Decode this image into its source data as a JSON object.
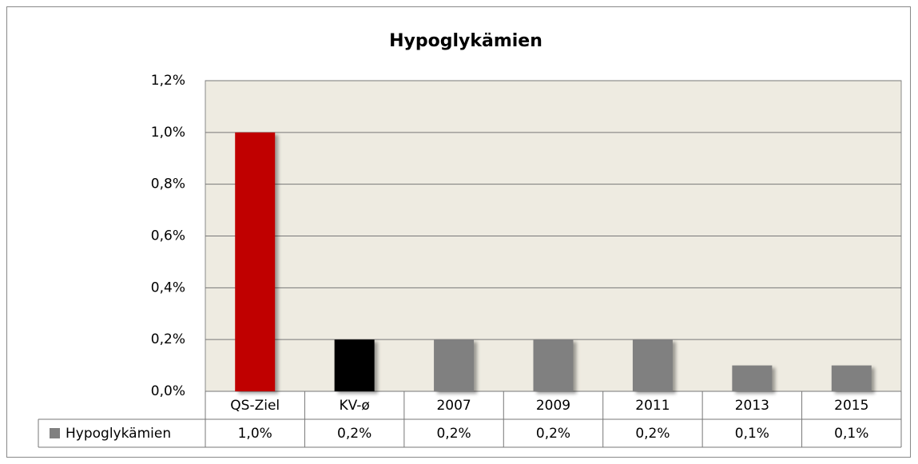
{
  "chart_data": {
    "type": "bar",
    "title": "Hypoglykämien",
    "categories": [
      "QS-Ziel",
      "KV-ø",
      "2007",
      "2009",
      "2011",
      "2013",
      "2015"
    ],
    "series": [
      {
        "name": "Hypoglykämien",
        "color": "#808080",
        "colors": [
          "#c00000",
          "#000000",
          "#808080",
          "#808080",
          "#808080",
          "#808080",
          "#808080"
        ],
        "values": [
          1.0,
          0.2,
          0.2,
          0.2,
          0.2,
          0.1,
          0.1
        ],
        "value_labels": [
          "1,0%",
          "0,2%",
          "0,2%",
          "0,2%",
          "0,2%",
          "0,1%",
          "0,1%"
        ]
      }
    ],
    "ylim": [
      0,
      1.2
    ],
    "yticks": [
      {
        "value": 0,
        "label": "0,0%"
      },
      {
        "value": 0.2,
        "label": "0,2%"
      },
      {
        "value": 0.4,
        "label": "0,4%"
      },
      {
        "value": 0.6,
        "label": "0,6%"
      },
      {
        "value": 0.8,
        "label": "0,8%"
      },
      {
        "value": 1.0,
        "label": "1,0%"
      },
      {
        "value": 1.2,
        "label": "1,2%"
      }
    ],
    "grid": true,
    "background": "#eeebe1"
  }
}
